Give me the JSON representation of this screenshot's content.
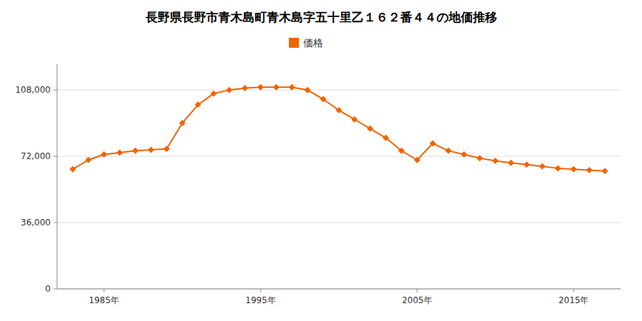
{
  "chart_data": {
    "type": "line",
    "title": "長野県長野市青木島町青木島字五十里乙１６２番４４の地価推移",
    "x": [
      1983,
      1984,
      1985,
      1986,
      1987,
      1988,
      1989,
      1990,
      1991,
      1992,
      1993,
      1994,
      1995,
      1996,
      1997,
      1998,
      1999,
      2000,
      2001,
      2002,
      2003,
      2004,
      2005,
      2006,
      2007,
      2008,
      2009,
      2010,
      2011,
      2012,
      2013,
      2014,
      2015,
      2016,
      2017
    ],
    "series": [
      {
        "name": "価格",
        "color": "#f06400",
        "marker": "diamond",
        "values": [
          65000,
          70000,
          73000,
          74000,
          75000,
          75500,
          76000,
          90000,
          100000,
          106000,
          108000,
          109000,
          109500,
          109500,
          109500,
          108000,
          103000,
          97000,
          92000,
          87000,
          82000,
          75000,
          70000,
          79000,
          75000,
          73000,
          71000,
          69500,
          68500,
          67500,
          66500,
          65500,
          65000,
          64500,
          64000
        ]
      }
    ],
    "xlim": [
      1982,
      2018
    ],
    "xticks": [
      {
        "value": 1985,
        "label": "1985年"
      },
      {
        "value": 1995,
        "label": "1995年"
      },
      {
        "value": 2005,
        "label": "2005年"
      },
      {
        "value": 2015,
        "label": "2015年"
      }
    ],
    "ylim": [
      0,
      122000
    ],
    "yticks": [
      0,
      {
        "value": 36000,
        "label": "36,000"
      },
      {
        "value": 72000,
        "label": "72,000"
      },
      {
        "value": 108000,
        "label": "108,000"
      }
    ],
    "grid": "y",
    "legend": "top"
  }
}
